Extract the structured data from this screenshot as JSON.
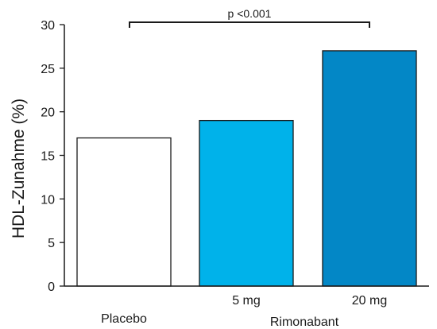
{
  "chart_data": {
    "type": "bar",
    "categories": [
      "Placebo",
      "5 mg",
      "20 mg"
    ],
    "values": [
      17,
      19,
      27
    ],
    "colors": [
      "#ffffff",
      "#00b2ea",
      "#0387c6"
    ],
    "group_label": "Rimonabant",
    "title": "",
    "xlabel": "",
    "ylabel": "HDL-Zunahme (%)",
    "ylim": [
      0,
      30
    ],
    "yticks": [
      0,
      5,
      10,
      15,
      20,
      25,
      30
    ],
    "grid": false,
    "annotation": {
      "text": "p <0.001",
      "from": "Placebo",
      "to": "20 mg"
    }
  }
}
